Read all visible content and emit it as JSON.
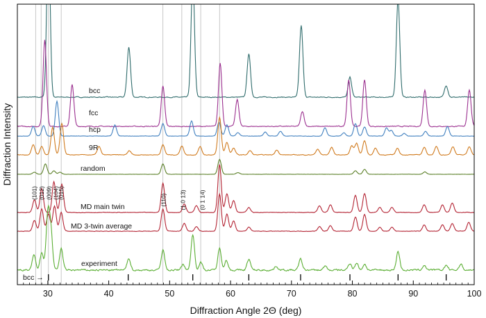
{
  "chart_data": {
    "type": "line",
    "xlabel": "Diffraction Angle 2Θ (deg)",
    "ylabel": "Diffraction Intensity",
    "xlim": [
      25,
      100
    ],
    "xticks": [
      30,
      40,
      50,
      60,
      70,
      80,
      90,
      100
    ],
    "xtick_labels": [
      "30",
      "40",
      "50",
      "60",
      "70",
      "80",
      "90",
      "100"
    ],
    "reference_lines": [
      28.0,
      28.9,
      30.1,
      32.2,
      48.9,
      52.0,
      55.1,
      58.2
    ],
    "hkl_annotations": [
      {
        "label": "(101)",
        "x": 27.8
      },
      {
        "label": "(012)",
        "x": 29.0
      },
      {
        "label": "(009)",
        "x": 30.2
      },
      {
        "label": "(104)",
        "x": 31.3
      },
      {
        "label": "(015)",
        "x": 32.2
      },
      {
        "label": "(110)",
        "x": 49.0
      },
      {
        "label": "(1 0 13)",
        "x": 52.2
      },
      {
        "label": "(0 1 14)",
        "x": 55.4
      }
    ],
    "bcc_marker": {
      "label": "bcc →",
      "positions": [
        30.1,
        43.2,
        53.8,
        63.0,
        71.5,
        79.6,
        87.5,
        95.4
      ]
    },
    "series": [
      {
        "name": "bcc",
        "color": "#2e6b6b",
        "baseline": 0.0,
        "noise": 0.01,
        "peaks": [
          [
            30.1,
            1.0
          ],
          [
            43.3,
            0.3
          ],
          [
            53.8,
            0.72
          ],
          [
            63.0,
            0.26
          ],
          [
            71.6,
            0.43
          ],
          [
            79.6,
            0.12
          ],
          [
            87.5,
            0.59
          ],
          [
            95.4,
            0.07
          ]
        ]
      },
      {
        "name": "fcc",
        "color": "#9b2f8f",
        "baseline": 0.0,
        "noise": 0.01,
        "peaks": [
          [
            29.5,
            0.52
          ],
          [
            34.0,
            0.25
          ],
          [
            48.9,
            0.24
          ],
          [
            58.3,
            0.38
          ],
          [
            61.1,
            0.16
          ],
          [
            71.8,
            0.09
          ],
          [
            79.4,
            0.28
          ],
          [
            82.0,
            0.28
          ],
          [
            91.9,
            0.22
          ],
          [
            99.2,
            0.22
          ]
        ]
      },
      {
        "name": "hcp",
        "color": "#3f7fbf",
        "baseline": 0.0,
        "noise": 0.01,
        "peaks": [
          [
            27.6,
            0.14
          ],
          [
            29.3,
            0.15
          ],
          [
            31.5,
            0.5
          ],
          [
            41.0,
            0.16
          ],
          [
            48.9,
            0.18
          ],
          [
            53.6,
            0.22
          ],
          [
            58.1,
            0.2
          ],
          [
            59.4,
            0.16
          ],
          [
            61.2,
            0.05
          ],
          [
            65.7,
            0.06
          ],
          [
            68.2,
            0.07
          ],
          [
            75.5,
            0.12
          ],
          [
            78.6,
            0.05
          ],
          [
            80.5,
            0.18
          ],
          [
            82.0,
            0.13
          ],
          [
            85.6,
            0.12
          ],
          [
            86.4,
            0.08
          ],
          [
            88.5,
            0.04
          ],
          [
            92.0,
            0.07
          ],
          [
            95.6,
            0.14
          ]
        ]
      },
      {
        "name": "9R",
        "color": "#d07a1d",
        "baseline": 0.0,
        "noise": 0.015,
        "peaks": [
          [
            27.6,
            0.12
          ],
          [
            29.0,
            0.1
          ],
          [
            30.8,
            0.33
          ],
          [
            32.3,
            0.38
          ],
          [
            38.4,
            0.1
          ],
          [
            43.4,
            0.05
          ],
          [
            48.9,
            0.12
          ],
          [
            52.0,
            0.11
          ],
          [
            55.0,
            0.1
          ],
          [
            58.2,
            0.45
          ],
          [
            59.4,
            0.15
          ],
          [
            60.5,
            0.08
          ],
          [
            63.2,
            0.05
          ],
          [
            67.6,
            0.06
          ],
          [
            74.3,
            0.07
          ],
          [
            76.6,
            0.09
          ],
          [
            79.9,
            0.11
          ],
          [
            80.7,
            0.14
          ],
          [
            82.0,
            0.17
          ],
          [
            83.8,
            0.08
          ],
          [
            87.4,
            0.08
          ],
          [
            91.8,
            0.09
          ],
          [
            93.8,
            0.1
          ],
          [
            96.5,
            0.1
          ],
          [
            99.2,
            0.1
          ]
        ]
      },
      {
        "name": "random",
        "color": "#5a7f26",
        "baseline": 0.0,
        "noise": 0.01,
        "peaks": [
          [
            27.8,
            0.06
          ],
          [
            29.6,
            0.3
          ],
          [
            31.0,
            0.1
          ],
          [
            32.0,
            0.06
          ],
          [
            48.9,
            0.3
          ],
          [
            58.2,
            0.43
          ],
          [
            61.2,
            0.05
          ],
          [
            80.5,
            0.1
          ],
          [
            82.0,
            0.14
          ],
          [
            91.9,
            0.07
          ]
        ]
      },
      {
        "name": "MD main twin",
        "color": "#b32232",
        "baseline": 0.0,
        "noise": 0.012,
        "peaks": [
          [
            27.8,
            0.15
          ],
          [
            29.0,
            0.28
          ],
          [
            31.0,
            0.36
          ],
          [
            32.3,
            0.33
          ],
          [
            48.9,
            0.34
          ],
          [
            52.4,
            0.1
          ],
          [
            54.4,
            0.08
          ],
          [
            58.2,
            0.56
          ],
          [
            59.4,
            0.22
          ],
          [
            60.5,
            0.14
          ],
          [
            63.0,
            0.06
          ],
          [
            74.6,
            0.08
          ],
          [
            76.4,
            0.09
          ],
          [
            80.5,
            0.2
          ],
          [
            82.0,
            0.22
          ],
          [
            84.5,
            0.06
          ],
          [
            86.5,
            0.06
          ],
          [
            91.8,
            0.09
          ],
          [
            94.8,
            0.09
          ],
          [
            96.4,
            0.11
          ]
        ]
      },
      {
        "name": "MD 3-twin average",
        "color": "#b32232",
        "baseline": 0.0,
        "noise": 0.012,
        "peaks": [
          [
            27.8,
            0.14
          ],
          [
            29.0,
            0.28
          ],
          [
            30.1,
            0.22
          ],
          [
            31.1,
            0.32
          ],
          [
            32.2,
            0.24
          ],
          [
            48.9,
            0.28
          ],
          [
            52.4,
            0.1
          ],
          [
            54.4,
            0.06
          ],
          [
            58.2,
            0.47
          ],
          [
            59.4,
            0.22
          ],
          [
            60.5,
            0.13
          ],
          [
            63.0,
            0.05
          ],
          [
            74.6,
            0.06
          ],
          [
            76.4,
            0.07
          ],
          [
            80.5,
            0.18
          ],
          [
            82.0,
            0.21
          ],
          [
            84.5,
            0.05
          ],
          [
            86.5,
            0.05
          ],
          [
            91.8,
            0.08
          ],
          [
            94.8,
            0.08
          ],
          [
            96.4,
            0.1
          ],
          [
            99.1,
            0.11
          ]
        ]
      },
      {
        "name": "experiment",
        "color": "#5aae32",
        "baseline": 0.0,
        "noise": 0.035,
        "peaks": [
          [
            27.7,
            0.15
          ],
          [
            29.0,
            0.17
          ],
          [
            30.0,
            0.55
          ],
          [
            30.5,
            0.38
          ],
          [
            32.2,
            0.22
          ],
          [
            43.3,
            0.12
          ],
          [
            48.9,
            0.21
          ],
          [
            52.2,
            0.06
          ],
          [
            53.8,
            0.36
          ],
          [
            55.1,
            0.08
          ],
          [
            58.2,
            0.22
          ],
          [
            59.3,
            0.1
          ],
          [
            63.0,
            0.11
          ],
          [
            67.5,
            0.04
          ],
          [
            71.5,
            0.11
          ],
          [
            75.5,
            0.04
          ],
          [
            79.6,
            0.07
          ],
          [
            80.7,
            0.07
          ],
          [
            82.0,
            0.06
          ],
          [
            87.5,
            0.19
          ],
          [
            91.8,
            0.05
          ],
          [
            95.4,
            0.05
          ],
          [
            97.8,
            0.06
          ]
        ]
      }
    ]
  }
}
